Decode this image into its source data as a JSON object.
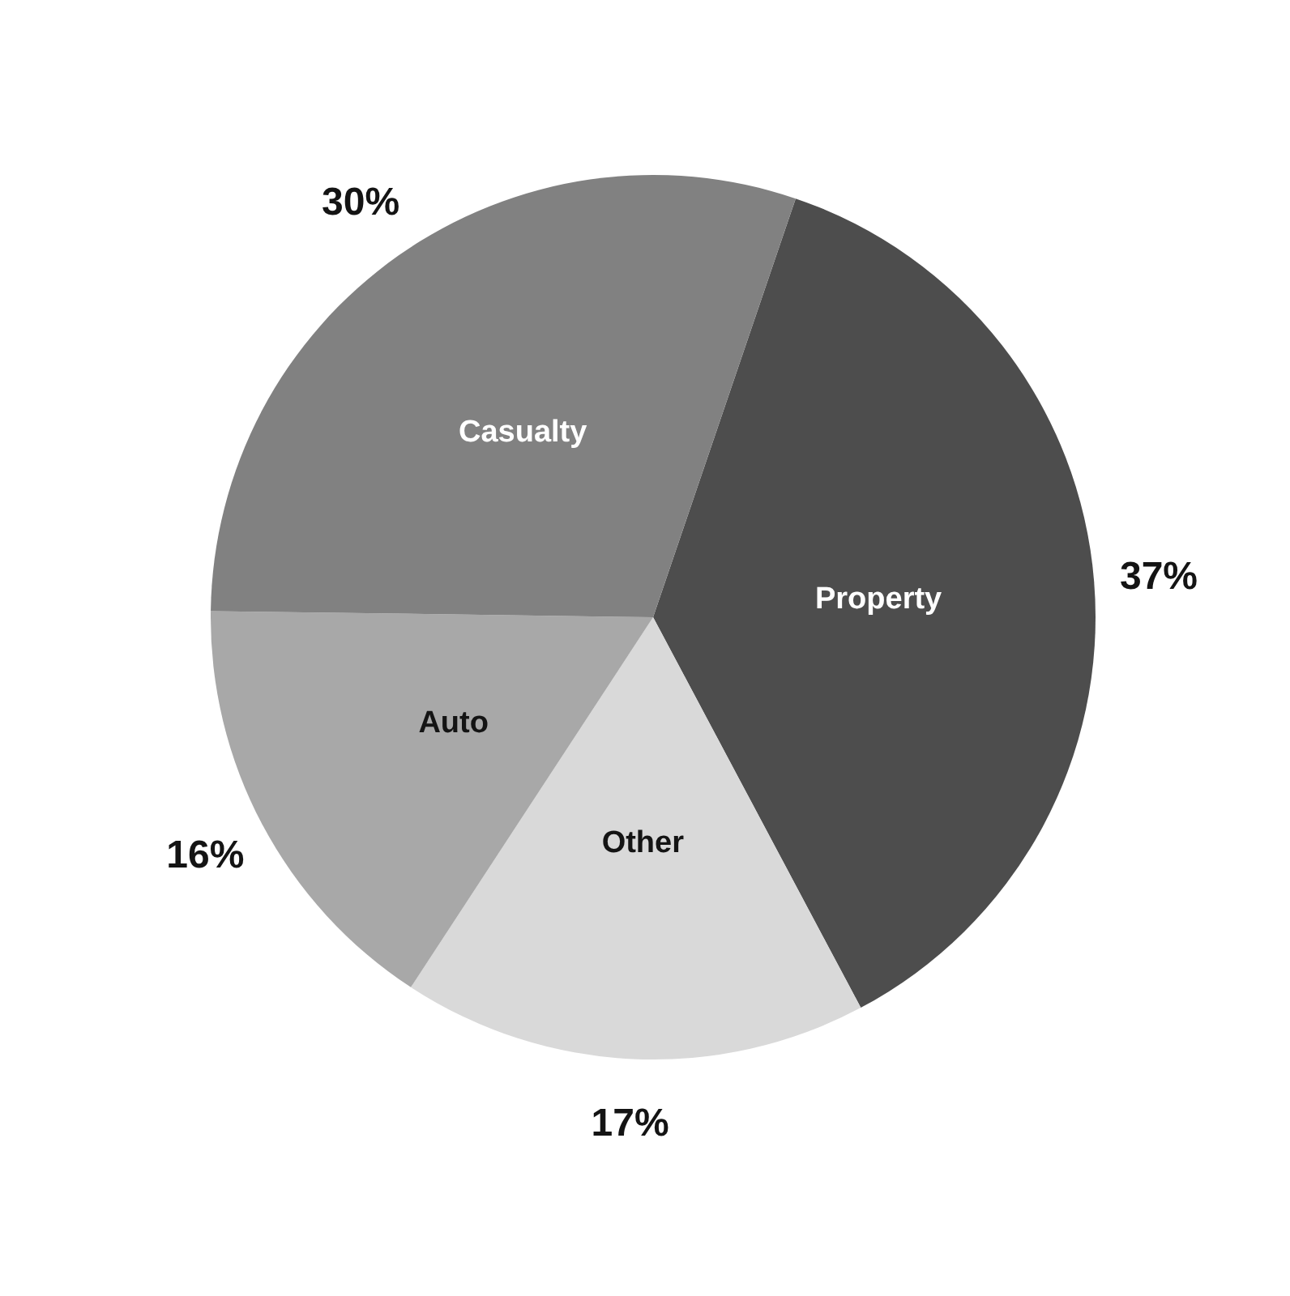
{
  "chart_data": {
    "type": "pie",
    "categories": [
      "Property",
      "Other",
      "Auto",
      "Casualty"
    ],
    "values": [
      37,
      17,
      16,
      30
    ],
    "value_labels": [
      "37%",
      "17%",
      "16%",
      "30%"
    ],
    "colors": [
      "#4d4d4d",
      "#d9d9d9",
      "#a8a8a8",
      "#818181"
    ]
  }
}
